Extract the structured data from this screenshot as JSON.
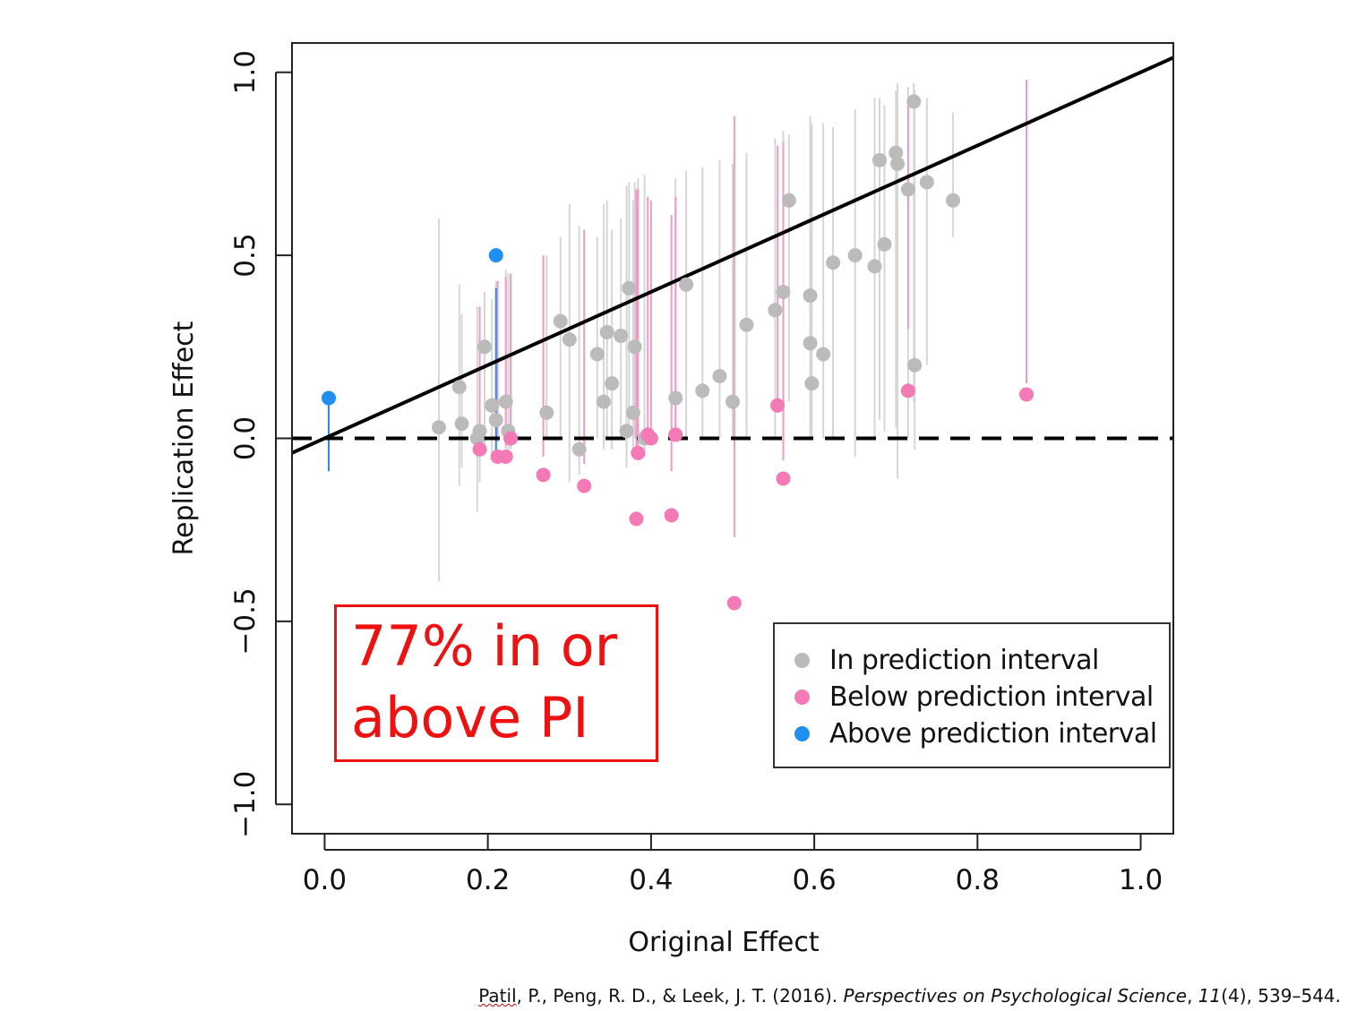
{
  "chart_data": {
    "type": "scatter",
    "xlabel": "Original Effect",
    "ylabel": "Replication Effect",
    "xlim": [
      -0.04,
      1.04
    ],
    "ylim": [
      -1.08,
      1.08
    ],
    "xticks": [
      "0.0",
      "0.2",
      "0.4",
      "0.6",
      "0.8",
      "1.0"
    ],
    "yticks": [
      "−1.0",
      "−0.5",
      "0.0",
      "0.5",
      "1.0"
    ],
    "xtick_values": [
      0,
      0.2,
      0.4,
      0.6,
      0.8,
      1.0
    ],
    "ytick_values": [
      -1,
      -0.5,
      0,
      0.5,
      1
    ],
    "grid": false,
    "legend_position": "bottom-right",
    "reference_lines": [
      {
        "kind": "identity",
        "style": "solid",
        "color": "#000000"
      },
      {
        "kind": "zero",
        "style": "dashed",
        "color": "#000000"
      }
    ],
    "series": [
      {
        "name": "In prediction interval",
        "color": "#bbbbbb",
        "interval_color": "#d6d6d6",
        "points": [
          {
            "x": 0.14,
            "y": 0.03,
            "lo": -0.39,
            "hi": 0.6
          },
          {
            "x": 0.165,
            "y": 0.14,
            "lo": -0.13,
            "hi": 0.42
          },
          {
            "x": 0.168,
            "y": 0.04,
            "lo": -0.08,
            "hi": 0.34
          },
          {
            "x": 0.187,
            "y": 0.0,
            "lo": -0.2,
            "hi": 0.36
          },
          {
            "x": 0.19,
            "y": 0.02,
            "lo": -0.12,
            "hi": 0.34
          },
          {
            "x": 0.196,
            "y": 0.25,
            "lo": -0.03,
            "hi": 0.4
          },
          {
            "x": 0.205,
            "y": 0.09,
            "lo": -0.05,
            "hi": 0.38
          },
          {
            "x": 0.21,
            "y": 0.05,
            "lo": -0.04,
            "hi": 0.43
          },
          {
            "x": 0.222,
            "y": 0.1,
            "lo": -0.03,
            "hi": 0.46
          },
          {
            "x": 0.225,
            "y": 0.02,
            "lo": -0.04,
            "hi": 0.45
          },
          {
            "x": 0.228,
            "y": 0.0,
            "lo": -0.03,
            "hi": 0.4
          },
          {
            "x": 0.272,
            "y": 0.07,
            "lo": 0.0,
            "hi": 0.5
          },
          {
            "x": 0.289,
            "y": 0.32,
            "lo": 0.0,
            "hi": 0.55
          },
          {
            "x": 0.3,
            "y": 0.27,
            "lo": -0.12,
            "hi": 0.64
          },
          {
            "x": 0.312,
            "y": -0.03,
            "lo": -0.1,
            "hi": 0.58
          },
          {
            "x": 0.334,
            "y": 0.23,
            "lo": 0.0,
            "hi": 0.55
          },
          {
            "x": 0.342,
            "y": 0.1,
            "lo": -0.03,
            "hi": 0.64
          },
          {
            "x": 0.346,
            "y": 0.29,
            "lo": 0.0,
            "hi": 0.65
          },
          {
            "x": 0.352,
            "y": 0.15,
            "lo": -0.03,
            "hi": 0.57
          },
          {
            "x": 0.363,
            "y": 0.28,
            "lo": 0.0,
            "hi": 0.6
          },
          {
            "x": 0.37,
            "y": 0.02,
            "lo": -0.08,
            "hi": 0.69
          },
          {
            "x": 0.373,
            "y": 0.41,
            "lo": 0.0,
            "hi": 0.7
          },
          {
            "x": 0.378,
            "y": 0.07,
            "lo": -0.05,
            "hi": 0.65
          },
          {
            "x": 0.38,
            "y": 0.25,
            "lo": 0.0,
            "hi": 0.7
          },
          {
            "x": 0.384,
            "y": -0.04,
            "lo": -0.05,
            "hi": 0.71
          },
          {
            "x": 0.392,
            "y": 0.0,
            "lo": -0.05,
            "hi": 0.72
          },
          {
            "x": 0.43,
            "y": 0.11,
            "lo": 0.0,
            "hi": 0.71
          },
          {
            "x": 0.443,
            "y": 0.42,
            "lo": 0.0,
            "hi": 0.73
          },
          {
            "x": 0.463,
            "y": 0.13,
            "lo": 0.0,
            "hi": 0.74
          },
          {
            "x": 0.484,
            "y": 0.17,
            "lo": 0.0,
            "hi": 0.76
          },
          {
            "x": 0.5,
            "y": 0.1,
            "lo": 0.0,
            "hi": 0.75
          },
          {
            "x": 0.517,
            "y": 0.31,
            "lo": 0.0,
            "hi": 0.78
          },
          {
            "x": 0.552,
            "y": 0.35,
            "lo": 0.0,
            "hi": 0.82
          },
          {
            "x": 0.562,
            "y": 0.4,
            "lo": 0.0,
            "hi": 0.84
          },
          {
            "x": 0.569,
            "y": 0.65,
            "lo": 0.1,
            "hi": 0.83
          },
          {
            "x": 0.595,
            "y": 0.39,
            "lo": 0.0,
            "hi": 0.88
          },
          {
            "x": 0.595,
            "y": 0.26,
            "lo": 0.0,
            "hi": 0.87
          },
          {
            "x": 0.597,
            "y": 0.15,
            "lo": 0.0,
            "hi": 0.86
          },
          {
            "x": 0.611,
            "y": 0.23,
            "lo": 0.0,
            "hi": 0.86
          },
          {
            "x": 0.623,
            "y": 0.48,
            "lo": 0.0,
            "hi": 0.85
          },
          {
            "x": 0.65,
            "y": 0.5,
            "lo": -0.05,
            "hi": 0.9
          },
          {
            "x": 0.674,
            "y": 0.47,
            "lo": 0.0,
            "hi": 0.93
          },
          {
            "x": 0.68,
            "y": 0.76,
            "lo": 0.05,
            "hi": 0.93
          },
          {
            "x": 0.686,
            "y": 0.53,
            "lo": 0.02,
            "hi": 0.91
          },
          {
            "x": 0.7,
            "y": 0.78,
            "lo": 0.03,
            "hi": 0.95
          },
          {
            "x": 0.702,
            "y": 0.75,
            "lo": -0.11,
            "hi": 0.97
          },
          {
            "x": 0.715,
            "y": 0.68,
            "lo": 0.0,
            "hi": 0.96
          },
          {
            "x": 0.722,
            "y": 0.92,
            "lo": 0.1,
            "hi": 0.97
          },
          {
            "x": 0.723,
            "y": 0.2,
            "lo": -0.03,
            "hi": 0.95
          },
          {
            "x": 0.738,
            "y": 0.7,
            "lo": 0.2,
            "hi": 0.93
          },
          {
            "x": 0.77,
            "y": 0.65,
            "lo": 0.55,
            "hi": 0.89
          }
        ]
      },
      {
        "name": "Below prediction interval",
        "color": "#f47ab5",
        "interval_color": "#f29ac6",
        "points": [
          {
            "x": 0.19,
            "y": -0.03,
            "lo": -0.01,
            "hi": 0.36
          },
          {
            "x": 0.212,
            "y": -0.05,
            "lo": -0.01,
            "hi": 0.43
          },
          {
            "x": 0.222,
            "y": -0.05,
            "lo": -0.02,
            "hi": 0.44
          },
          {
            "x": 0.228,
            "y": 0.0,
            "lo": 0.0,
            "hi": 0.45
          },
          {
            "x": 0.268,
            "y": -0.1,
            "lo": -0.05,
            "hi": 0.5
          },
          {
            "x": 0.318,
            "y": -0.13,
            "lo": -0.07,
            "hi": 0.57
          },
          {
            "x": 0.382,
            "y": -0.22,
            "lo": -0.04,
            "hi": 0.68
          },
          {
            "x": 0.384,
            "y": -0.04,
            "lo": -0.03,
            "hi": 0.68
          },
          {
            "x": 0.396,
            "y": 0.01,
            "lo": 0.02,
            "hi": 0.66
          },
          {
            "x": 0.4,
            "y": 0.0,
            "lo": 0.02,
            "hi": 0.65
          },
          {
            "x": 0.425,
            "y": -0.21,
            "lo": -0.09,
            "hi": 0.61
          },
          {
            "x": 0.43,
            "y": 0.01,
            "lo": 0.02,
            "hi": 0.66
          },
          {
            "x": 0.502,
            "y": -0.45,
            "lo": -0.27,
            "hi": 0.88
          },
          {
            "x": 0.555,
            "y": 0.09,
            "lo": 0.1,
            "hi": 0.8
          },
          {
            "x": 0.562,
            "y": -0.11,
            "lo": -0.06,
            "hi": 0.81
          },
          {
            "x": 0.715,
            "y": 0.13,
            "lo": 0.3,
            "hi": 0.91
          },
          {
            "x": 0.86,
            "y": 0.12,
            "lo": 0.15,
            "hi": 0.98
          }
        ]
      },
      {
        "name": "Above prediction interval",
        "color": "#1f8ff0",
        "interval_color": "#2c8be8",
        "points": [
          {
            "x": 0.005,
            "y": 0.11,
            "lo": -0.09,
            "hi": 0.1
          },
          {
            "x": 0.21,
            "y": 0.5,
            "lo": -0.04,
            "hi": 0.41
          }
        ]
      }
    ],
    "annotation": "77% in or\nabove PI"
  },
  "legend": {
    "items": [
      {
        "label": "In prediction interval",
        "color": "#bbbbbb"
      },
      {
        "label": "Below prediction interval",
        "color": "#f47ab5"
      },
      {
        "label": "Above prediction interval",
        "color": "#1f8ff0"
      }
    ]
  },
  "citation": {
    "authors": "Patil",
    "rest": ", P., Peng, R. D., & Leek, J. T. (2016). ",
    "journal": "Perspectives on Psychological Science",
    "sep": ", ",
    "volume": "11",
    "pages": "(4), 539–544."
  }
}
